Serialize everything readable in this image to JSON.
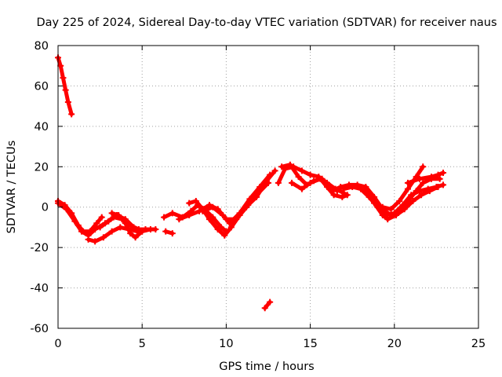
{
  "chart_data": {
    "type": "scatter",
    "title": "Day 225 of 2024, Sidereal Day-to-day VTEC variation (SDTVAR) for receiver naus",
    "xlabel": "GPS time / hours",
    "ylabel": "SDTVAR / TECUs",
    "xlim": [
      0,
      25
    ],
    "ylim": [
      -60,
      80
    ],
    "xticks": [
      0,
      5,
      10,
      15,
      20,
      25
    ],
    "yticks": [
      -60,
      -40,
      -20,
      0,
      20,
      40,
      60,
      80
    ],
    "xtick_labels": [
      "0",
      "5",
      "10",
      "15",
      "20",
      "25"
    ],
    "ytick_labels": [
      "-60",
      "-40",
      "-20",
      "0",
      "20",
      "40",
      "60",
      "80"
    ],
    "grid": true,
    "marker": "plus",
    "colors": {
      "series": "#ff0000",
      "grid": "#a0a0a0",
      "axis": "#000000"
    },
    "series": [
      {
        "name": "arc-1",
        "points": [
          [
            0.0,
            74
          ],
          [
            0.15,
            70
          ],
          [
            0.3,
            64
          ],
          [
            0.45,
            58
          ],
          [
            0.6,
            52
          ],
          [
            0.8,
            46
          ]
        ]
      },
      {
        "name": "arc-2",
        "points": [
          [
            0.0,
            3
          ],
          [
            0.4,
            1
          ],
          [
            0.8,
            -3
          ],
          [
            1.2,
            -9
          ],
          [
            1.5,
            -12
          ],
          [
            1.9,
            -12
          ],
          [
            2.3,
            -8
          ],
          [
            2.6,
            -5
          ]
        ]
      },
      {
        "name": "arc-3",
        "points": [
          [
            0.0,
            2
          ],
          [
            0.5,
            -1
          ],
          [
            1.0,
            -7
          ],
          [
            1.4,
            -12
          ],
          [
            1.8,
            -14
          ],
          [
            2.2,
            -11
          ],
          [
            2.8,
            -8
          ],
          [
            3.3,
            -5
          ],
          [
            3.8,
            -6
          ],
          [
            4.3,
            -9
          ],
          [
            4.8,
            -11
          ],
          [
            5.2,
            -11
          ]
        ]
      },
      {
        "name": "arc-4",
        "points": [
          [
            1.8,
            -16
          ],
          [
            2.2,
            -17
          ],
          [
            2.7,
            -15
          ],
          [
            3.2,
            -12
          ],
          [
            3.7,
            -10
          ],
          [
            4.2,
            -11
          ],
          [
            4.7,
            -12
          ],
          [
            5.2,
            -11
          ],
          [
            5.8,
            -11
          ]
        ]
      },
      {
        "name": "arc-5",
        "points": [
          [
            2.5,
            -10
          ],
          [
            3.0,
            -7
          ],
          [
            3.5,
            -4
          ],
          [
            4.0,
            -6
          ],
          [
            4.5,
            -10
          ],
          [
            5.0,
            -12
          ],
          [
            5.5,
            -11
          ]
        ]
      },
      {
        "name": "arc-6",
        "points": [
          [
            3.2,
            -3
          ],
          [
            3.6,
            -4
          ],
          [
            4.0,
            -8
          ],
          [
            4.3,
            -13
          ],
          [
            4.6,
            -15
          ],
          [
            5.0,
            -12
          ]
        ]
      },
      {
        "name": "arc-7",
        "points": [
          [
            6.4,
            -12
          ],
          [
            6.8,
            -13
          ]
        ]
      },
      {
        "name": "arc-8",
        "points": [
          [
            6.3,
            -5
          ],
          [
            6.8,
            -3
          ],
          [
            7.4,
            -5
          ],
          [
            7.9,
            -2
          ],
          [
            8.3,
            1
          ],
          [
            8.7,
            -1
          ],
          [
            9.2,
            -5
          ],
          [
            9.7,
            -10
          ],
          [
            10.0,
            -12
          ]
        ]
      },
      {
        "name": "arc-9",
        "points": [
          [
            7.8,
            2
          ],
          [
            8.2,
            3
          ],
          [
            8.6,
            -1
          ],
          [
            9.0,
            -6
          ],
          [
            9.5,
            -11
          ],
          [
            9.9,
            -14
          ],
          [
            10.3,
            -10
          ],
          [
            10.8,
            -4
          ],
          [
            11.3,
            1
          ],
          [
            11.8,
            5
          ],
          [
            12.4,
            13
          ],
          [
            12.9,
            18
          ]
        ]
      },
      {
        "name": "arc-10",
        "points": [
          [
            8.6,
            -2
          ],
          [
            9.2,
            0
          ],
          [
            9.8,
            -4
          ],
          [
            10.2,
            -8
          ],
          [
            10.8,
            -3
          ],
          [
            11.4,
            4
          ],
          [
            12.0,
            10
          ],
          [
            12.6,
            16
          ]
        ]
      },
      {
        "name": "arc-11",
        "points": [
          [
            7.2,
            -6
          ],
          [
            7.8,
            -4
          ],
          [
            8.4,
            -2
          ],
          [
            9.0,
            1
          ],
          [
            9.5,
            -1
          ],
          [
            10.0,
            -6
          ],
          [
            10.6,
            -6
          ],
          [
            11.2,
            0
          ],
          [
            11.8,
            6
          ],
          [
            12.5,
            12
          ]
        ]
      },
      {
        "name": "arc-12",
        "points": [
          [
            12.3,
            -50
          ],
          [
            12.6,
            -47
          ]
        ]
      },
      {
        "name": "arc-13",
        "points": [
          [
            13.1,
            12
          ],
          [
            13.5,
            19
          ],
          [
            14.0,
            20
          ],
          [
            14.5,
            18
          ],
          [
            15.0,
            16
          ],
          [
            15.5,
            15
          ],
          [
            16.0,
            12
          ],
          [
            16.5,
            9
          ],
          [
            17.0,
            7
          ]
        ]
      },
      {
        "name": "arc-14",
        "points": [
          [
            13.3,
            20
          ],
          [
            13.8,
            21
          ],
          [
            14.3,
            15
          ],
          [
            14.8,
            11
          ],
          [
            15.2,
            13
          ],
          [
            15.7,
            14
          ],
          [
            16.1,
            11
          ],
          [
            16.6,
            8
          ]
        ]
      },
      {
        "name": "arc-15",
        "points": [
          [
            13.9,
            12
          ],
          [
            14.5,
            9
          ],
          [
            15.0,
            12
          ],
          [
            15.6,
            14
          ],
          [
            16.0,
            10
          ],
          [
            16.4,
            6
          ],
          [
            16.9,
            5
          ],
          [
            17.2,
            6
          ]
        ]
      },
      {
        "name": "arc-16",
        "points": [
          [
            16.3,
            8
          ],
          [
            16.8,
            10
          ],
          [
            17.3,
            11
          ],
          [
            17.8,
            11
          ],
          [
            18.3,
            10
          ],
          [
            18.8,
            5
          ],
          [
            19.3,
            -1
          ],
          [
            19.8,
            -4
          ],
          [
            20.3,
            -2
          ],
          [
            20.8,
            3
          ],
          [
            21.3,
            8
          ],
          [
            21.7,
            12
          ],
          [
            22.2,
            14
          ],
          [
            22.7,
            14
          ]
        ]
      },
      {
        "name": "arc-17",
        "points": [
          [
            17.0,
            9
          ],
          [
            17.5,
            10
          ],
          [
            18.0,
            9
          ],
          [
            18.5,
            5
          ],
          [
            19.0,
            0
          ],
          [
            19.5,
            -4
          ],
          [
            20.0,
            -3
          ],
          [
            20.5,
            1
          ],
          [
            21.0,
            6
          ],
          [
            21.5,
            8
          ],
          [
            22.0,
            9
          ],
          [
            22.5,
            10
          ],
          [
            22.9,
            11
          ]
        ]
      },
      {
        "name": "arc-18",
        "points": [
          [
            18.3,
            9
          ],
          [
            18.8,
            2
          ],
          [
            19.3,
            -4
          ],
          [
            19.6,
            -6
          ],
          [
            20.1,
            -4
          ],
          [
            20.6,
            -1
          ],
          [
            21.1,
            3
          ],
          [
            21.6,
            6
          ],
          [
            22.1,
            8
          ],
          [
            22.6,
            10
          ]
        ]
      },
      {
        "name": "arc-19",
        "points": [
          [
            19.3,
            0
          ],
          [
            19.8,
            -1
          ],
          [
            20.3,
            3
          ],
          [
            20.8,
            9
          ],
          [
            21.3,
            15
          ],
          [
            21.7,
            20
          ]
        ]
      },
      {
        "name": "arc-20",
        "points": [
          [
            20.8,
            12
          ],
          [
            21.5,
            14
          ],
          [
            22.2,
            15
          ],
          [
            22.6,
            16
          ],
          [
            22.9,
            17
          ]
        ]
      }
    ]
  }
}
